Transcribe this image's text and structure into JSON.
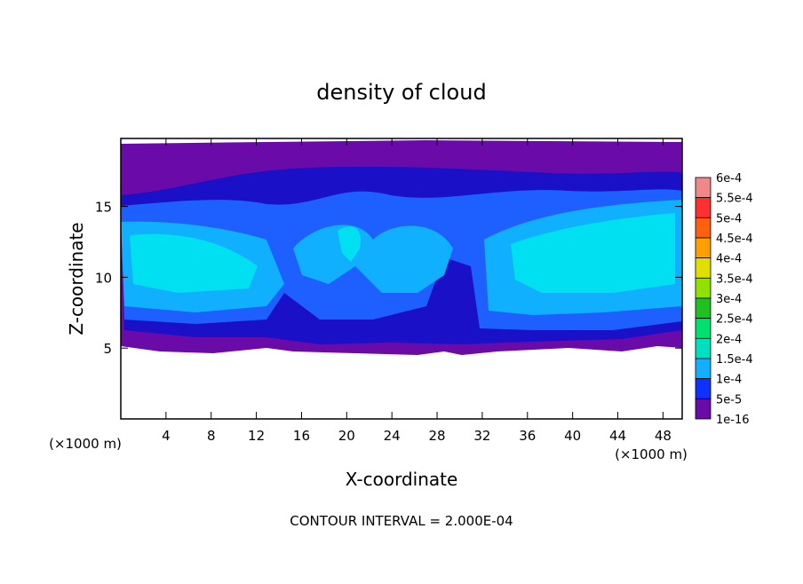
{
  "chart_data": {
    "type": "contour",
    "title": "density of cloud",
    "xlabel": "X-coordinate",
    "ylabel": "Z-coordinate",
    "x_unit": "(×1000 m)",
    "z_unit": "(×1000 m)",
    "note": "CONTOUR INTERVAL = 2.000E-04",
    "xlim": [
      0,
      49.7
    ],
    "xticks": [
      4,
      8,
      12,
      16,
      20,
      24,
      28,
      32,
      36,
      40,
      44,
      48
    ],
    "ylim": [
      0,
      19.8
    ],
    "yticks": [
      5,
      10,
      15
    ],
    "colorbar_levels": [
      {
        "value": 0.0006,
        "label": "6e-4"
      },
      {
        "value": 0.00055,
        "label": "5.5e-4"
      },
      {
        "value": 0.0005,
        "label": "5e-4"
      },
      {
        "value": 0.00045,
        "label": "4.5e-4"
      },
      {
        "value": 0.0004,
        "label": "4e-4"
      },
      {
        "value": 0.00035,
        "label": "3.5e-4"
      },
      {
        "value": 0.0003,
        "label": "3e-4"
      },
      {
        "value": 0.00025,
        "label": "2.5e-4"
      },
      {
        "value": 0.0002,
        "label": "2e-4"
      },
      {
        "value": 0.00015,
        "label": "1.5e-4"
      },
      {
        "value": 0.0001,
        "label": "1e-4"
      },
      {
        "value": 5e-05,
        "label": "5e-5"
      },
      {
        "value": 1e-16,
        "label": "1e-16"
      }
    ],
    "colorbar_colors": [
      "#f08888",
      "#ff3030",
      "#ff6010",
      "#ffa000",
      "#e0e000",
      "#90e000",
      "#20c020",
      "#00e070",
      "#00e0c0",
      "#10b0ff",
      "#1030ff",
      "#6a0aa8"
    ]
  }
}
